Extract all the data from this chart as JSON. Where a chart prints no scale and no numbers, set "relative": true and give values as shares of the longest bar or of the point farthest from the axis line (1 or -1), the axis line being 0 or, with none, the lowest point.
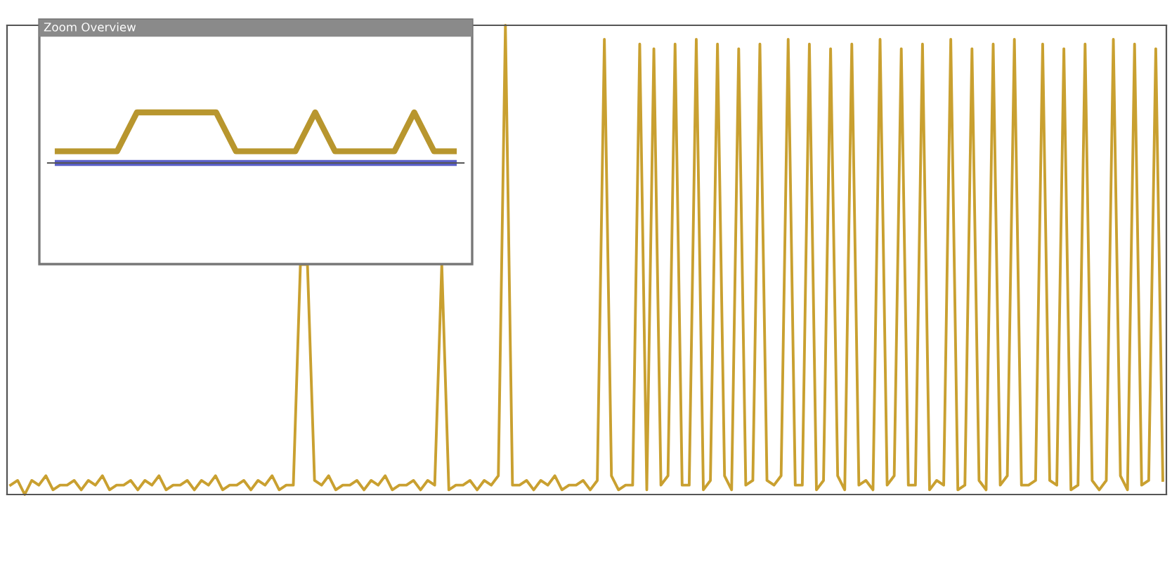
{
  "chart_data": [
    {
      "type": "line",
      "relative": true,
      "categories": [
        null,
        null,
        null,
        null,
        null,
        null,
        null,
        null,
        null,
        null,
        null,
        null,
        null,
        null,
        null,
        null,
        null,
        null,
        null,
        null,
        null,
        null,
        null,
        null,
        null,
        null,
        null,
        null,
        null,
        null,
        null,
        null,
        null,
        null,
        null,
        null,
        null,
        null,
        null,
        null,
        null,
        null,
        null,
        null,
        null,
        null,
        null,
        null,
        null,
        null,
        null,
        null,
        null,
        null,
        null,
        null,
        null,
        null,
        null,
        null,
        null,
        null,
        null,
        null,
        null,
        null,
        null,
        null,
        null,
        null,
        null,
        null,
        null,
        null,
        null,
        null,
        null,
        null,
        null,
        null,
        null,
        null,
        null,
        null,
        null,
        null,
        null,
        null,
        null,
        null,
        null,
        null,
        null,
        null,
        null,
        null,
        null,
        null,
        null,
        null,
        null,
        null,
        null,
        null,
        null,
        null,
        null,
        null,
        null,
        null,
        null,
        null,
        null,
        null,
        null,
        null,
        null,
        null,
        null,
        null,
        null,
        null,
        null,
        null,
        null,
        null,
        null,
        null,
        null,
        null,
        null,
        null,
        null,
        null,
        null,
        null,
        null,
        null,
        null,
        null,
        null,
        null,
        null,
        null,
        null,
        null,
        null,
        null,
        null,
        null,
        null,
        null,
        null,
        null,
        null,
        null,
        null,
        null,
        null,
        null,
        null,
        null,
        null,
        null
      ],
      "series": [
        {
          "color": "#c9a030",
          "values": [
            0.02,
            0.03,
            0.0,
            0.03,
            0.02,
            0.04,
            0.01,
            0.02,
            0.02,
            0.03,
            0.01,
            0.03,
            0.02,
            0.04,
            0.01,
            0.02,
            0.02,
            0.03,
            0.01,
            0.03,
            0.02,
            0.04,
            0.01,
            0.02,
            0.02,
            0.03,
            0.01,
            0.03,
            0.02,
            0.04,
            0.01,
            0.02,
            0.02,
            0.03,
            0.01,
            0.03,
            0.02,
            0.04,
            0.01,
            0.02,
            0.02,
            0.49,
            0.49,
            0.03,
            0.02,
            0.04,
            0.01,
            0.02,
            0.02,
            0.03,
            0.01,
            0.03,
            0.02,
            0.04,
            0.01,
            0.02,
            0.02,
            0.03,
            0.01,
            0.03,
            0.02,
            0.49,
            0.01,
            0.02,
            0.02,
            0.03,
            0.01,
            0.03,
            0.02,
            0.04,
            1.0,
            0.02,
            0.02,
            0.03,
            0.01,
            0.03,
            0.02,
            0.04,
            0.01,
            0.02,
            0.02,
            0.03,
            0.01,
            0.03,
            0.97,
            0.04,
            0.01,
            0.02,
            0.02,
            0.96,
            0.01,
            0.95,
            0.02,
            0.04,
            0.96,
            0.02,
            0.02,
            0.97,
            0.01,
            0.03,
            0.96,
            0.04,
            0.01,
            0.95,
            0.02,
            0.03,
            0.96,
            0.03,
            0.02,
            0.04,
            0.97,
            0.02,
            0.02,
            0.96,
            0.01,
            0.03,
            0.95,
            0.04,
            0.01,
            0.96,
            0.02,
            0.03,
            0.01,
            0.97,
            0.02,
            0.04,
            0.95,
            0.02,
            0.02,
            0.96,
            0.01,
            0.03,
            0.02,
            0.97,
            0.01,
            0.02,
            0.95,
            0.03,
            0.01,
            0.96,
            0.02,
            0.04,
            0.97,
            0.02,
            0.02,
            0.03,
            0.96,
            0.03,
            0.02,
            0.95,
            0.01,
            0.02,
            0.96,
            0.03,
            0.01,
            0.03,
            0.97,
            0.04,
            0.01,
            0.96,
            0.02,
            0.03,
            0.95,
            0.03
          ]
        }
      ]
    },
    {
      "type": "line",
      "relative": true,
      "title": "Zoom Overview",
      "categories": [
        null,
        null,
        null,
        null,
        null,
        null,
        null,
        null,
        null,
        null,
        null,
        null,
        null,
        null,
        null,
        null,
        null,
        null,
        null,
        null,
        null
      ],
      "series": [
        {
          "color": "#b8962e",
          "values": [
            0.23,
            0.23,
            0.23,
            0.23,
            1.0,
            1.0,
            1.0,
            1.0,
            1.0,
            0.23,
            0.23,
            0.23,
            0.23,
            1.0,
            0.23,
            0.23,
            0.23,
            0.23,
            1.0,
            0.23,
            0.23
          ]
        },
        {
          "color": "#5a5fc8",
          "values": [
            0,
            0,
            0,
            0,
            0,
            0,
            0,
            0,
            0,
            0,
            0,
            0,
            0,
            0,
            0,
            0,
            0,
            0,
            0,
            0,
            0
          ]
        }
      ]
    }
  ]
}
